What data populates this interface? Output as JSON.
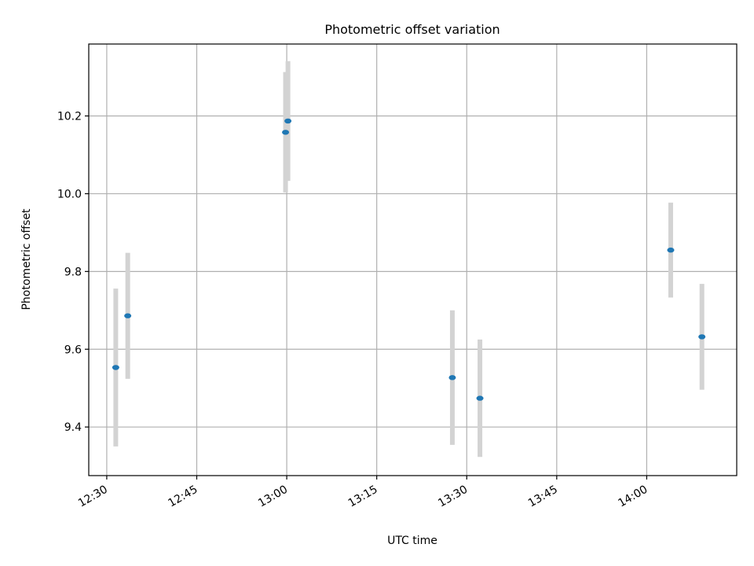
{
  "chart_data": {
    "type": "scatter",
    "title": "Photometric offset variation",
    "xlabel": "UTC time",
    "ylabel": "Photometric offset",
    "x_is_time": true,
    "xlim": [
      "12:27",
      "14:15"
    ],
    "ylim": [
      9.275,
      10.385
    ],
    "x_ticks": [
      "12:30",
      "12:45",
      "13:00",
      "13:15",
      "13:30",
      "13:45",
      "14:00"
    ],
    "y_ticks": [
      9.4,
      9.6,
      9.8,
      10.0,
      10.2
    ],
    "grid": true,
    "marker_color": "#1f77b4",
    "errorbar_color": "#d3d3d3",
    "points": [
      {
        "time": "12:31.5",
        "y": 9.553,
        "err": 0.203
      },
      {
        "time": "12:33.5",
        "y": 9.686,
        "err": 0.162
      },
      {
        "time": "12:59.8",
        "y": 10.158,
        "err": 0.155
      },
      {
        "time": "13:00.2",
        "y": 10.187,
        "err": 0.154
      },
      {
        "time": "13:27.6",
        "y": 9.527,
        "err": 0.173
      },
      {
        "time": "13:32.2",
        "y": 9.474,
        "err": 0.151
      },
      {
        "time": "14:04.0",
        "y": 9.855,
        "err": 0.122
      },
      {
        "time": "14:09.2",
        "y": 9.632,
        "err": 0.136
      }
    ]
  }
}
